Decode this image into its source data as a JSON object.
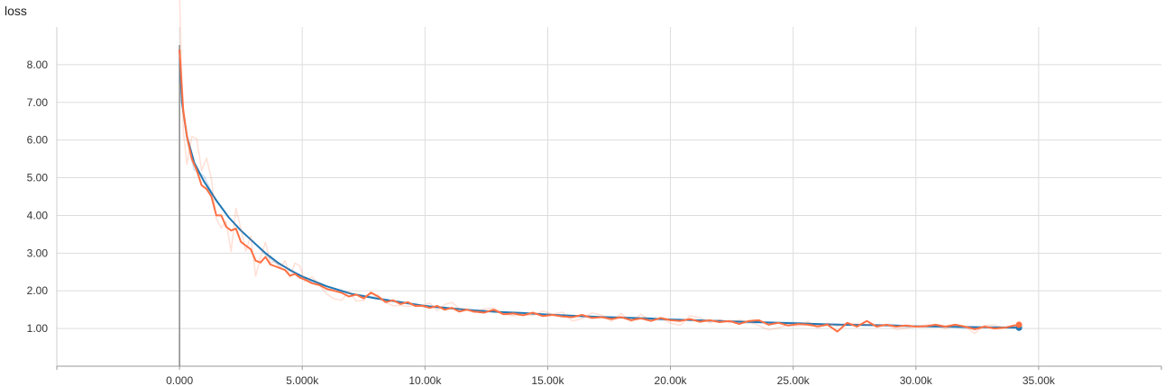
{
  "chart_data": {
    "type": "line",
    "title": "loss",
    "xlabel": "",
    "ylabel": "",
    "xlim": [
      -5000,
      40000
    ],
    "ylim": [
      0.0,
      9.0
    ],
    "x_ticks": [
      0,
      5000,
      10000,
      15000,
      20000,
      25000,
      30000,
      35000
    ],
    "x_tick_labels": [
      "0.000",
      "5.000k",
      "10.00k",
      "15.00k",
      "20.00k",
      "25.00k",
      "30.00k",
      "35.00k"
    ],
    "y_ticks": [
      1,
      2,
      3,
      4,
      5,
      6,
      7,
      8
    ],
    "y_tick_labels": [
      "1.00",
      "2.00",
      "3.00",
      "4.00",
      "5.00",
      "6.00",
      "7.00",
      "8.00"
    ],
    "grid": true,
    "series": [
      {
        "color": "#1f77b4",
        "smoothing": 0.6,
        "x": [
          0,
          100,
          300,
          600,
          1000,
          1500,
          2000,
          2500,
          3000,
          3500,
          4000,
          4500,
          5000,
          6000,
          7000,
          8000,
          9000,
          10000,
          11000,
          12000,
          13000,
          14000,
          15000,
          16000,
          17000,
          18000,
          19000,
          20000,
          21000,
          22000,
          23000,
          24000,
          25000,
          26000,
          27000,
          28000,
          29000,
          30000,
          31000,
          32000,
          33000,
          34200
        ],
        "y": [
          8.4,
          7.0,
          6.1,
          5.4,
          4.9,
          4.4,
          3.95,
          3.6,
          3.3,
          3.0,
          2.75,
          2.55,
          2.38,
          2.12,
          1.92,
          1.8,
          1.7,
          1.6,
          1.54,
          1.48,
          1.44,
          1.41,
          1.37,
          1.34,
          1.31,
          1.29,
          1.27,
          1.24,
          1.22,
          1.2,
          1.18,
          1.16,
          1.14,
          1.12,
          1.1,
          1.09,
          1.08,
          1.06,
          1.05,
          1.04,
          1.03,
          1.02
        ]
      },
      {
        "color": "#ff7043",
        "smoothing": 0.6,
        "x": [
          0,
          150,
          300,
          500,
          700,
          900,
          1100,
          1300,
          1500,
          1700,
          1900,
          2100,
          2300,
          2500,
          2700,
          2900,
          3100,
          3300,
          3500,
          3700,
          3900,
          4100,
          4300,
          4500,
          4700,
          4900,
          5100,
          5400,
          5700,
          6000,
          6300,
          6600,
          6900,
          7200,
          7500,
          7800,
          8100,
          8400,
          8700,
          9000,
          9300,
          9600,
          9900,
          10200,
          10500,
          10800,
          11100,
          11400,
          11700,
          12000,
          12400,
          12800,
          13200,
          13600,
          14000,
          14400,
          14800,
          15200,
          15600,
          16000,
          16400,
          16800,
          17200,
          17600,
          18000,
          18400,
          18800,
          19200,
          19600,
          20000,
          20400,
          20800,
          21200,
          21600,
          22000,
          22400,
          22800,
          23200,
          23600,
          24000,
          24400,
          24800,
          25200,
          25600,
          26000,
          26400,
          26800,
          27200,
          27600,
          28000,
          28400,
          28800,
          29200,
          29600,
          30000,
          30400,
          30800,
          31200,
          31600,
          32000,
          32400,
          32800,
          33200,
          33600,
          34000,
          34200
        ],
        "y": [
          8.4,
          6.8,
          6.1,
          5.5,
          5.2,
          4.8,
          4.7,
          4.5,
          4.0,
          4.0,
          3.7,
          3.6,
          3.65,
          3.3,
          3.2,
          3.1,
          2.8,
          2.75,
          2.9,
          2.7,
          2.65,
          2.6,
          2.55,
          2.4,
          2.45,
          2.35,
          2.3,
          2.2,
          2.15,
          2.05,
          2.0,
          1.95,
          1.85,
          1.9,
          1.8,
          1.95,
          1.85,
          1.7,
          1.75,
          1.65,
          1.7,
          1.6,
          1.6,
          1.55,
          1.6,
          1.5,
          1.55,
          1.45,
          1.5,
          1.45,
          1.42,
          1.5,
          1.38,
          1.4,
          1.35,
          1.42,
          1.33,
          1.36,
          1.32,
          1.3,
          1.36,
          1.28,
          1.3,
          1.25,
          1.3,
          1.22,
          1.27,
          1.2,
          1.28,
          1.22,
          1.2,
          1.25,
          1.18,
          1.22,
          1.17,
          1.2,
          1.12,
          1.2,
          1.22,
          1.1,
          1.15,
          1.08,
          1.12,
          1.1,
          1.06,
          1.1,
          0.92,
          1.15,
          1.05,
          1.2,
          1.05,
          1.1,
          1.05,
          1.08,
          1.05,
          1.06,
          1.1,
          1.05,
          1.1,
          1.05,
          0.98,
          1.05,
          1.0,
          1.02,
          1.08,
          1.1
        ]
      }
    ]
  }
}
